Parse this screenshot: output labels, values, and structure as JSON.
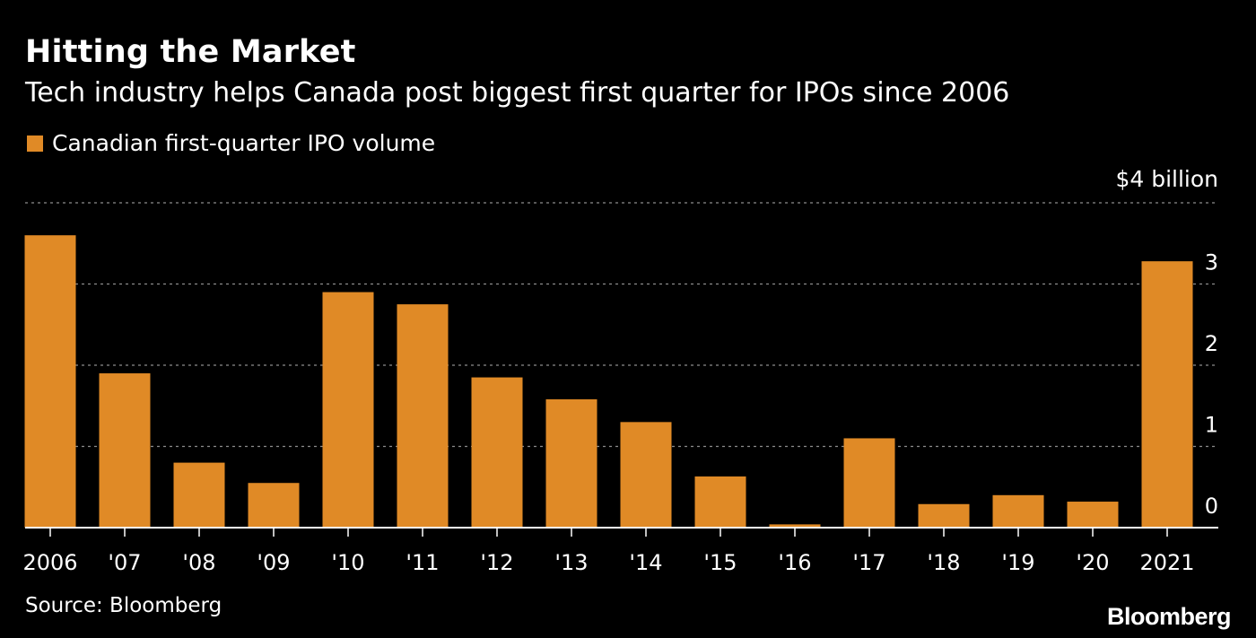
{
  "chart_data": {
    "type": "bar",
    "title": "Hitting the Market",
    "subtitle": "Tech industry helps Canada post biggest first quarter for IPOs since 2006",
    "series": [
      {
        "name": "Canadian first-quarter IPO volume",
        "values": [
          3.6,
          1.9,
          0.8,
          0.55,
          2.9,
          2.75,
          1.85,
          1.58,
          1.3,
          0.63,
          0.04,
          1.1,
          0.29,
          0.4,
          0.32,
          3.28
        ]
      }
    ],
    "categories": [
      "2006",
      "'07",
      "'08",
      "'09",
      "'10",
      "'11",
      "'12",
      "'13",
      "'14",
      "'15",
      "'16",
      "'17",
      "'18",
      "'19",
      "'20",
      "2021"
    ],
    "ylim": [
      0,
      4
    ],
    "yticks": [
      0,
      1,
      2,
      3,
      4
    ],
    "ytick_labels": [
      "0",
      "1",
      "2",
      "3",
      "$4 billion"
    ],
    "grid": true,
    "legend_position": "top-left",
    "yaxis_position": "right",
    "source": "Source: Bloomberg",
    "brand": "Bloomberg",
    "colors": {
      "bar": "#e08a26",
      "background": "#000000",
      "text": "#ffffff",
      "grid": "#8c8c8c",
      "axis": "#ffffff"
    }
  }
}
